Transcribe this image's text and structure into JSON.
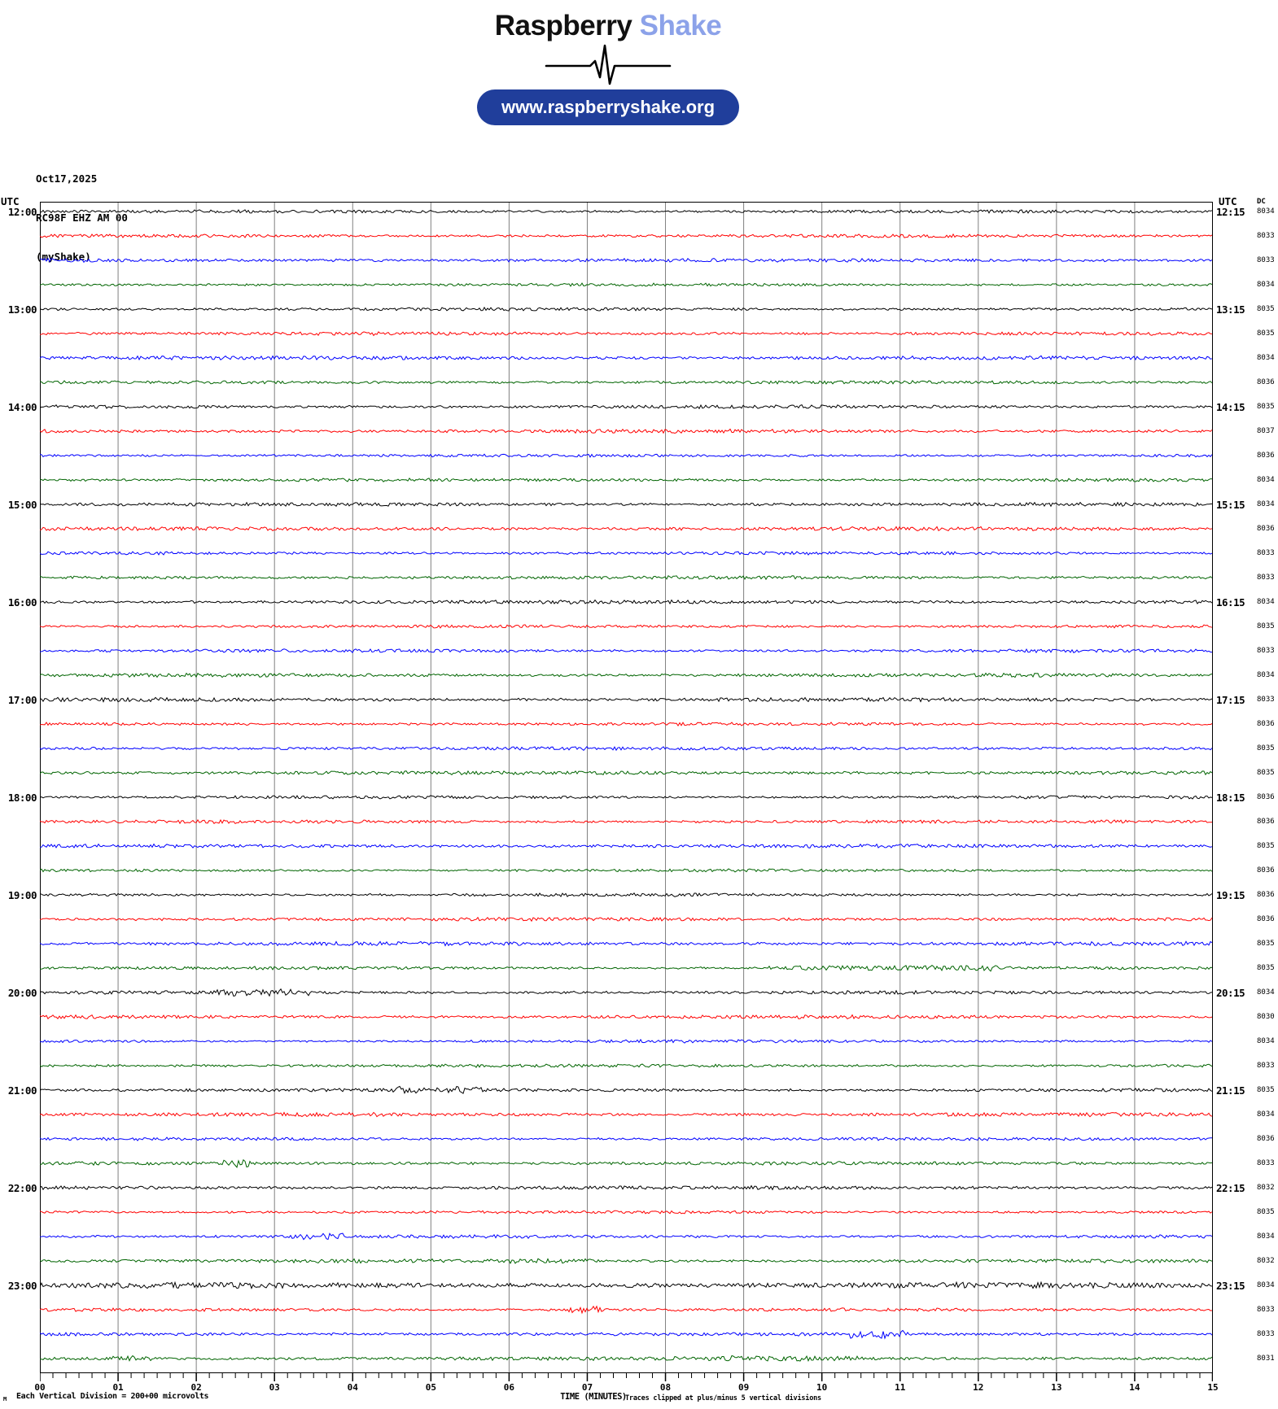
{
  "header": {
    "logo_primary": "Raspberry",
    "logo_secondary": "Shake",
    "url_button": "www.raspberryshake.org",
    "colors": {
      "logo_primary": "#111111",
      "logo_secondary": "#8CA2E9",
      "button_bg": "#203E9B",
      "button_text": "#FFFFFF"
    }
  },
  "station": {
    "date": "Oct17,2025",
    "id": "RC98F EHZ AM 00",
    "network": "(myShake)"
  },
  "axes": {
    "left_header": "UTC",
    "right_header": "UTC",
    "dc_header": "DC",
    "left_labels": [
      "12:00",
      "13:00",
      "14:00",
      "15:00",
      "16:00",
      "17:00",
      "18:00",
      "19:00",
      "20:00",
      "21:00",
      "22:00",
      "23:00"
    ],
    "right_labels": [
      "12:15",
      "13:15",
      "14:15",
      "15:15",
      "16:15",
      "17:15",
      "18:15",
      "19:15",
      "20:15",
      "21:15",
      "22:15",
      "23:15"
    ],
    "x_ticks": [
      "00",
      "01",
      "02",
      "03",
      "04",
      "05",
      "06",
      "07",
      "08",
      "09",
      "10",
      "11",
      "12",
      "13",
      "14",
      "15"
    ],
    "x_title": "TIME (MINUTES)"
  },
  "footer": {
    "clip_note": "Traces clipped at plus/minus 5 vertical divisions",
    "scale_note": "Each Vertical Division =  200+00 microvolts",
    "corner_glyph": "M"
  },
  "traces": {
    "colors_cycle": [
      "#000000",
      "#FF0000",
      "#0000FF",
      "#006400"
    ],
    "grid_color": "#808080",
    "dc_values": [
      8034,
      8033,
      8033,
      8034,
      8035,
      8035,
      8034,
      8036,
      8035,
      8037,
      8036,
      8034,
      8034,
      8036,
      8033,
      8033,
      8034,
      8035,
      8033,
      8034,
      8033,
      8036,
      8035,
      8035,
      8036,
      8036,
      8035,
      8036,
      8036,
      8036,
      8035,
      8035,
      8034,
      8030,
      8034,
      8033,
      8035,
      8034,
      8036,
      8033,
      8032,
      8035,
      8034,
      8032,
      8034,
      8033,
      8033,
      8031
    ]
  },
  "chart_data": {
    "type": "line",
    "subtype": "helicorder",
    "title": "RC98F EHZ AM 00 (myShake) — Oct17,2025",
    "xlabel": "TIME (MINUTES)",
    "x_range": [
      0,
      15
    ],
    "x_tick_labels": [
      "00",
      "01",
      "02",
      "03",
      "04",
      "05",
      "06",
      "07",
      "08",
      "09",
      "10",
      "11",
      "12",
      "13",
      "14",
      "15"
    ],
    "minor_ticks_per_minute": 6,
    "rows": 48,
    "minutes_per_row": 15,
    "row_start_times_utc_left": [
      "12:00",
      "13:00",
      "14:00",
      "15:00",
      "16:00",
      "17:00",
      "18:00",
      "19:00",
      "20:00",
      "21:00",
      "22:00",
      "23:00"
    ],
    "row_end_times_utc_right": [
      "12:15",
      "13:15",
      "14:15",
      "15:15",
      "16:15",
      "17:15",
      "18:15",
      "19:15",
      "20:15",
      "21:15",
      "22:15",
      "23:15"
    ],
    "trace_color_cycle": [
      "#000000",
      "#FF0000",
      "#0000FF",
      "#006400"
    ],
    "dc_offsets_per_row": [
      8034,
      8033,
      8033,
      8034,
      8035,
      8035,
      8034,
      8036,
      8035,
      8037,
      8036,
      8034,
      8034,
      8036,
      8033,
      8033,
      8034,
      8035,
      8033,
      8034,
      8033,
      8036,
      8035,
      8035,
      8036,
      8036,
      8035,
      8036,
      8036,
      8036,
      8035,
      8035,
      8034,
      8030,
      8034,
      8033,
      8035,
      8034,
      8036,
      8033,
      8032,
      8035,
      8034,
      8032,
      8034,
      8033,
      8033,
      8031
    ],
    "series_description": "48 quarter-hour rows of ambient seismic background noise; low amplitude with occasional small bursts; no large events",
    "scale_note": "Each Vertical Division =  200+00 microvolts",
    "clip_note": "Traces clipped at plus/minus 5 vertical divisions",
    "grid": true,
    "legend": false
  }
}
